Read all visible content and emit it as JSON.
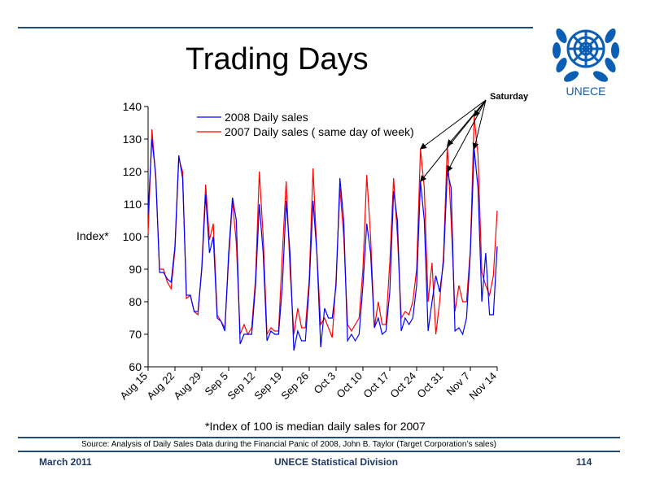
{
  "slide": {
    "title": "Trading Days",
    "logo_text": "UNECE",
    "source": "Source: Analysis of Daily Sales Data during the Financial Panic of 2008, John B. Taylor (Target Corporation’s sales)",
    "footer_left": "March 2011",
    "footer_center": "UNECE Statistical Division",
    "footer_right": "114",
    "colors": {
      "rule": "#1f4e79",
      "footer_text": "#1f3864",
      "logo": "#0a5fb4"
    }
  },
  "chart_data": {
    "type": "line",
    "title": "",
    "ylabel": "Index*",
    "xlabel": "",
    "note": "*Index of 100 is median daily sales for 2007",
    "annotation": "Saturday",
    "ylim": [
      60,
      140
    ],
    "yticks": [
      60,
      70,
      80,
      90,
      100,
      110,
      120,
      130,
      140
    ],
    "xticks": [
      "Aug 15",
      "Aug 22",
      "Aug 29",
      "Sep 5",
      "Sep 12",
      "Sep 19",
      "Sep 26",
      "Oct 3",
      "Oct 10",
      "Oct 17",
      "Oct 24",
      "Oct 31",
      "Nov 7",
      "Nov 14"
    ],
    "legend_position": "top-left",
    "grid": false,
    "series": [
      {
        "name": "2008 Daily sales",
        "color": "#0000ff",
        "values": [
          107,
          130,
          119,
          89,
          89,
          87,
          86,
          97,
          125,
          118,
          82,
          82,
          77,
          77,
          90,
          113,
          95,
          100,
          75,
          74,
          71,
          95,
          112,
          105,
          67,
          70,
          70,
          70,
          85,
          110,
          95,
          68,
          71,
          70,
          70,
          85,
          111,
          95,
          65,
          71,
          68,
          68,
          85,
          111,
          95,
          66,
          78,
          75,
          75,
          85,
          118,
          105,
          68,
          70,
          68,
          70,
          85,
          104,
          95,
          72,
          75,
          70,
          71,
          83,
          114,
          105,
          71,
          75,
          73,
          75,
          85,
          117,
          105,
          71,
          80,
          88,
          83,
          92,
          120,
          115,
          71,
          72,
          70,
          75,
          95,
          127,
          115,
          80,
          95,
          76,
          76,
          97
        ]
      },
      {
        "name": "2007 Daily sales ( same day of week)",
        "color": "#ff0000",
        "values": [
          101,
          133,
          118,
          90,
          90,
          86,
          84,
          96,
          124,
          120,
          81,
          82,
          77,
          76,
          91,
          116,
          99,
          104,
          76,
          74,
          72,
          93,
          111,
          98,
          70,
          73,
          70,
          72,
          87,
          120,
          100,
          70,
          72,
          71,
          71,
          95,
          117,
          90,
          70,
          78,
          72,
          72,
          87,
          121,
          95,
          73,
          75,
          72,
          69,
          87,
          115,
          100,
          73,
          71,
          73,
          75,
          90,
          119,
          100,
          72,
          80,
          73,
          73,
          92,
          118,
          100,
          75,
          77,
          76,
          80,
          90,
          127,
          115,
          80,
          92,
          70,
          80,
          94,
          128,
          105,
          77,
          85,
          80,
          80,
          96,
          137,
          125,
          89,
          85,
          82,
          88,
          108
        ]
      }
    ]
  }
}
